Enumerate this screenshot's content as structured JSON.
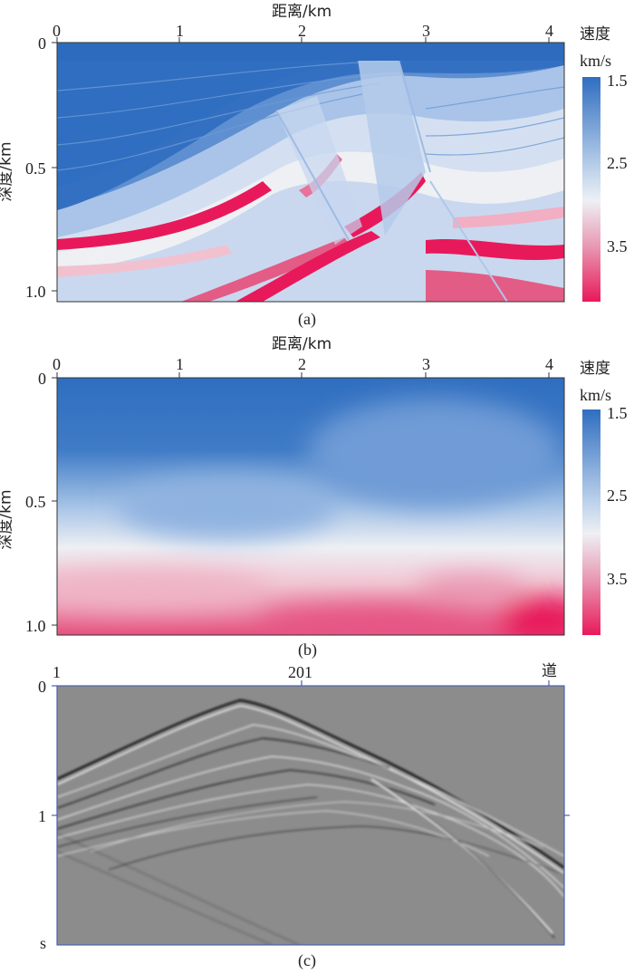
{
  "panel_a": {
    "x_axis_label": "距离/km",
    "y_axis_label": "深度/km",
    "x_ticks": [
      "0",
      "1",
      "2",
      "3",
      "4"
    ],
    "y_ticks": [
      "0",
      "0.5",
      "1.0"
    ],
    "colorbar_title_line1": "速度",
    "colorbar_title_line2": "km/s",
    "colorbar_ticks": [
      "1.5",
      "2.5",
      "3.5"
    ],
    "caption": "(a)"
  },
  "panel_b": {
    "x_axis_label": "距离/km",
    "y_axis_label": "深度/km",
    "x_ticks": [
      "0",
      "1",
      "2",
      "3",
      "4"
    ],
    "y_ticks": [
      "0",
      "0.5",
      "1.0"
    ],
    "colorbar_title_line1": "速度",
    "colorbar_title_line2": "km/s",
    "colorbar_ticks": [
      "1.5",
      "2.5",
      "3.5"
    ],
    "caption": "(b)"
  },
  "panel_c": {
    "x_ticks": [
      "1",
      "201",
      "道"
    ],
    "y_ticks": [
      "0",
      "1",
      "s"
    ],
    "caption": "(c)"
  },
  "colors": {
    "low_velocity": "#2f6ec0",
    "mid_velocity": "#eef0f4",
    "high_velocity": "#e8195a",
    "seismic_background": "#8c8c8c",
    "axis_frame_c": "#4a62b0"
  }
}
